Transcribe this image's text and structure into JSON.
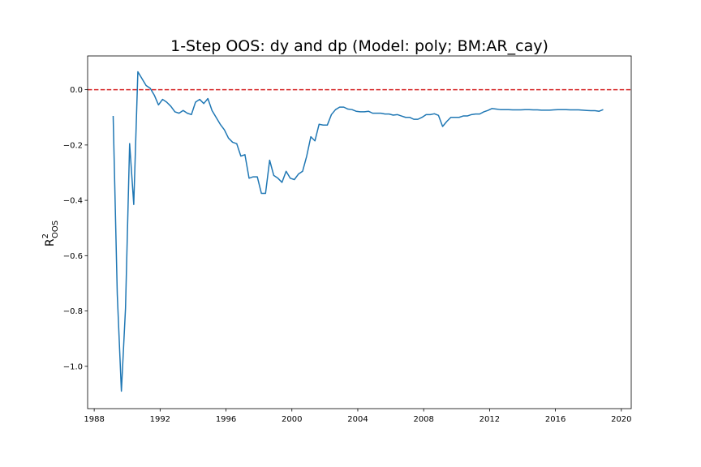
{
  "chart_data": {
    "type": "line",
    "title": "1-Step OOS: dy and dp (Model: poly; BM:AR_cay)",
    "xlabel": "",
    "ylabel": {
      "base": "R",
      "superscript": "2",
      "subscript": "OOS"
    },
    "xlim": [
      1987.6,
      2020.6
    ],
    "ylim": [
      -1.153,
      0.122
    ],
    "x_ticks": [
      1988,
      1992,
      1996,
      2000,
      2004,
      2008,
      2012,
      2016,
      2020
    ],
    "y_ticks": [
      0.0,
      -0.2,
      -0.4,
      -0.6,
      -0.8,
      -1.0
    ],
    "y_tick_labels": [
      "0.0",
      "−0.2",
      "−0.4",
      "−0.6",
      "−0.8",
      "−1.0"
    ],
    "reference_line": {
      "y": 0.0,
      "style": "dashed",
      "color": "#d62728"
    },
    "line_color": "#1f77b4",
    "grid": false,
    "series": [
      {
        "x": [
          1989.15,
          1989.4,
          1989.65,
          1989.9,
          1990.15,
          1990.4,
          1990.65,
          1990.9,
          1991.15,
          1991.4,
          1991.65,
          1991.9,
          1992.15,
          1992.4,
          1992.65,
          1992.9,
          1993.15,
          1993.4,
          1993.65,
          1993.9,
          1994.15,
          1994.4,
          1994.65,
          1994.9,
          1995.15,
          1995.4,
          1995.65,
          1995.9,
          1996.15,
          1996.4,
          1996.65,
          1996.9,
          1997.15,
          1997.4,
          1997.65,
          1997.9,
          1998.15,
          1998.4,
          1998.65,
          1998.9,
          1999.15,
          1999.4,
          1999.65,
          1999.9,
          2000.15,
          2000.4,
          2000.65,
          2000.9,
          2001.15,
          2001.4,
          2001.65,
          2001.9,
          2002.15,
          2002.4,
          2002.65,
          2002.9,
          2003.15,
          2003.4,
          2003.65,
          2003.9,
          2004.15,
          2004.4,
          2004.65,
          2004.9,
          2005.15,
          2005.4,
          2005.65,
          2005.9,
          2006.15,
          2006.4,
          2006.65,
          2006.9,
          2007.15,
          2007.4,
          2007.65,
          2007.9,
          2008.15,
          2008.4,
          2008.65,
          2008.9,
          2009.15,
          2009.4,
          2009.65,
          2009.9,
          2010.15,
          2010.4,
          2010.65,
          2010.9,
          2011.15,
          2011.4,
          2011.65,
          2011.9,
          2012.15,
          2012.4,
          2012.65,
          2012.9,
          2013.15,
          2013.4,
          2013.65,
          2013.9,
          2014.15,
          2014.4,
          2014.65,
          2014.9,
          2015.15,
          2015.4,
          2015.65,
          2015.9,
          2016.15,
          2016.4,
          2016.65,
          2016.9,
          2017.15,
          2017.4,
          2017.65,
          2017.9,
          2018.15,
          2018.4,
          2018.65,
          2018.9
        ],
        "values": [
          -0.095,
          -0.74,
          -1.09,
          -0.79,
          -0.195,
          -0.415,
          0.065,
          0.04,
          0.015,
          0.005,
          -0.02,
          -0.055,
          -0.035,
          -0.045,
          -0.06,
          -0.08,
          -0.085,
          -0.075,
          -0.085,
          -0.09,
          -0.045,
          -0.035,
          -0.05,
          -0.032,
          -0.075,
          -0.1,
          -0.125,
          -0.145,
          -0.175,
          -0.19,
          -0.195,
          -0.24,
          -0.235,
          -0.32,
          -0.315,
          -0.315,
          -0.375,
          -0.375,
          -0.255,
          -0.31,
          -0.32,
          -0.335,
          -0.295,
          -0.32,
          -0.325,
          -0.305,
          -0.295,
          -0.24,
          -0.17,
          -0.185,
          -0.125,
          -0.128,
          -0.128,
          -0.09,
          -0.072,
          -0.063,
          -0.063,
          -0.07,
          -0.072,
          -0.078,
          -0.08,
          -0.08,
          -0.078,
          -0.085,
          -0.085,
          -0.085,
          -0.088,
          -0.088,
          -0.092,
          -0.09,
          -0.095,
          -0.1,
          -0.1,
          -0.107,
          -0.107,
          -0.1,
          -0.09,
          -0.09,
          -0.087,
          -0.093,
          -0.133,
          -0.115,
          -0.1,
          -0.1,
          -0.1,
          -0.095,
          -0.095,
          -0.09,
          -0.088,
          -0.088,
          -0.08,
          -0.075,
          -0.068,
          -0.07,
          -0.072,
          -0.072,
          -0.072,
          -0.073,
          -0.073,
          -0.073,
          -0.072,
          -0.072,
          -0.073,
          -0.073,
          -0.074,
          -0.074,
          -0.074,
          -0.073,
          -0.072,
          -0.072,
          -0.072,
          -0.073,
          -0.073,
          -0.073,
          -0.074,
          -0.075,
          -0.076,
          -0.076,
          -0.078,
          -0.072
        ]
      }
    ]
  }
}
